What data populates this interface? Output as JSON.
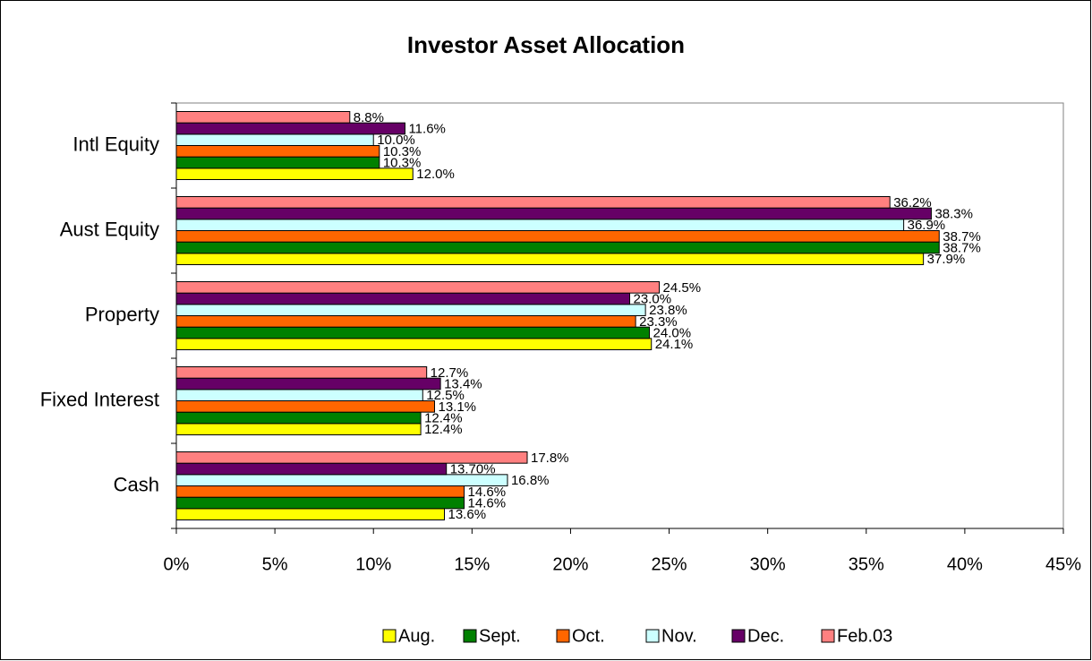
{
  "chart_data": {
    "type": "bar",
    "orientation": "horizontal",
    "title": "Investor Asset Allocation",
    "categories": [
      "Cash",
      "Fixed Interest",
      "Property",
      "Aust Equity",
      "Intl Equity"
    ],
    "series": [
      {
        "name": "Aug.",
        "color": "#ffff00",
        "values": [
          13.6,
          12.4,
          24.1,
          37.9,
          12.0
        ],
        "value_labels": [
          "13.6%",
          "12.4%",
          "24.1%",
          "37.9%",
          "12.0%"
        ]
      },
      {
        "name": "Sept.",
        "color": "#008000",
        "values": [
          14.6,
          12.4,
          24.0,
          38.7,
          10.3
        ],
        "value_labels": [
          "14.6%",
          "12.4%",
          "24.0%",
          "38.7%",
          "10.3%"
        ]
      },
      {
        "name": "Oct.",
        "color": "#ff6600",
        "values": [
          14.6,
          13.1,
          23.3,
          38.7,
          10.3
        ],
        "value_labels": [
          "14.6%",
          "13.1%",
          "23.3%",
          "38.7%",
          "10.3%"
        ]
      },
      {
        "name": "Nov.",
        "color": "#ccffff",
        "values": [
          16.8,
          12.5,
          23.8,
          36.9,
          10.0
        ],
        "value_labels": [
          "16.8%",
          "12.5%",
          "23.8%",
          "36.9%",
          "10.0%"
        ]
      },
      {
        "name": "Dec.",
        "color": "#660066",
        "values": [
          13.7,
          13.4,
          23.0,
          38.3,
          11.6
        ],
        "value_labels": [
          "13.70%",
          "13.4%",
          "23.0%",
          "38.3%",
          "11.6%"
        ]
      },
      {
        "name": "Feb.03",
        "color": "#ff8080",
        "values": [
          17.8,
          12.7,
          24.5,
          36.2,
          8.8
        ],
        "value_labels": [
          "17.8%",
          "12.7%",
          "24.5%",
          "36.2%",
          "8.8%"
        ]
      }
    ],
    "xlim": [
      0,
      45
    ],
    "xticks": [
      {
        "value": 0,
        "label": "0%"
      },
      {
        "value": 5,
        "label": "5%"
      },
      {
        "value": 10,
        "label": "10%"
      },
      {
        "value": 15,
        "label": "15%"
      },
      {
        "value": 20,
        "label": "20%"
      },
      {
        "value": 25,
        "label": "25%"
      },
      {
        "value": 30,
        "label": "30%"
      },
      {
        "value": 35,
        "label": "35%"
      },
      {
        "value": 40,
        "label": "40%"
      },
      {
        "value": 45,
        "label": "45%"
      }
    ],
    "legend": "bottom",
    "grid": false
  }
}
